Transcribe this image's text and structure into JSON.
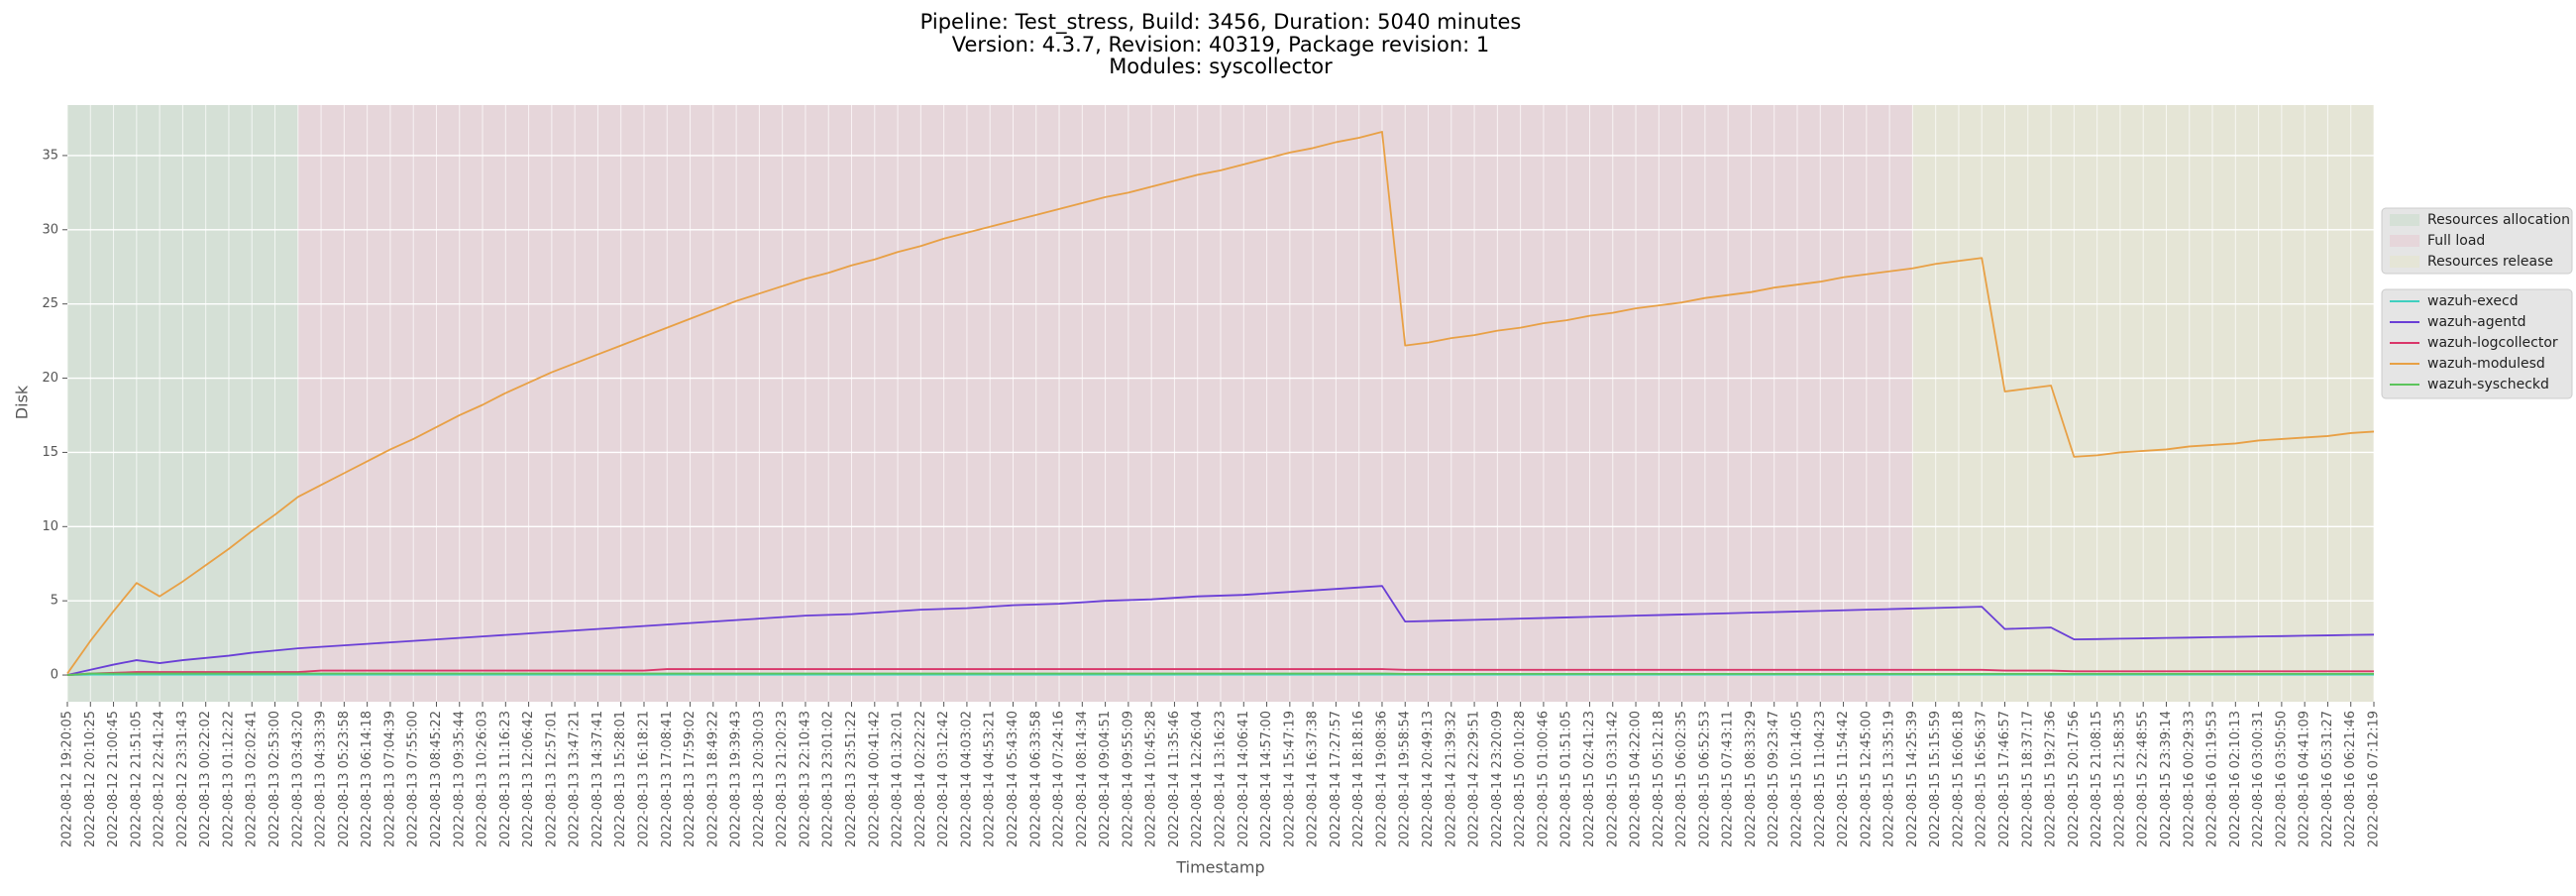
{
  "chart_data": {
    "type": "line",
    "title": [
      "Pipeline: Test_stress, Build: 3456, Duration: 5040 minutes",
      "Version: 4.3.7, Revision: 40319, Package revision: 1",
      "Modules: syscollector"
    ],
    "x_label": "Timestamp",
    "y_label": "Disk",
    "ylim": [
      -1.8,
      38.4
    ],
    "yticks": [
      0,
      5,
      10,
      15,
      20,
      25,
      30,
      35
    ],
    "grid": true,
    "legend": "right",
    "categories": [
      "2022-08-12 19:20:05",
      "2022-08-12 20:10:25",
      "2022-08-12 21:00:45",
      "2022-08-12 21:51:05",
      "2022-08-12 22:41:24",
      "2022-08-12 23:31:43",
      "2022-08-13 00:22:02",
      "2022-08-13 01:12:22",
      "2022-08-13 02:02:41",
      "2022-08-13 02:53:00",
      "2022-08-13 03:43:20",
      "2022-08-13 04:33:39",
      "2022-08-13 05:23:58",
      "2022-08-13 06:14:18",
      "2022-08-13 07:04:39",
      "2022-08-13 07:55:00",
      "2022-08-13 08:45:22",
      "2022-08-13 09:35:44",
      "2022-08-13 10:26:03",
      "2022-08-13 11:16:23",
      "2022-08-13 12:06:42",
      "2022-08-13 12:57:01",
      "2022-08-13 13:47:21",
      "2022-08-13 14:37:41",
      "2022-08-13 15:28:01",
      "2022-08-13 16:18:21",
      "2022-08-13 17:08:41",
      "2022-08-13 17:59:02",
      "2022-08-13 18:49:22",
      "2022-08-13 19:39:43",
      "2022-08-13 20:30:03",
      "2022-08-13 21:20:23",
      "2022-08-13 22:10:43",
      "2022-08-13 23:01:02",
      "2022-08-13 23:51:22",
      "2022-08-14 00:41:42",
      "2022-08-14 01:32:01",
      "2022-08-14 02:22:22",
      "2022-08-14 03:12:42",
      "2022-08-14 04:03:02",
      "2022-08-14 04:53:21",
      "2022-08-14 05:43:40",
      "2022-08-14 06:33:58",
      "2022-08-14 07:24:16",
      "2022-08-14 08:14:34",
      "2022-08-14 09:04:51",
      "2022-08-14 09:55:09",
      "2022-08-14 10:45:28",
      "2022-08-14 11:35:46",
      "2022-08-14 12:26:04",
      "2022-08-14 13:16:23",
      "2022-08-14 14:06:41",
      "2022-08-14 14:57:00",
      "2022-08-14 15:47:19",
      "2022-08-14 16:37:38",
      "2022-08-14 17:27:57",
      "2022-08-14 18:18:16",
      "2022-08-14 19:08:36",
      "2022-08-14 19:58:54",
      "2022-08-14 20:49:13",
      "2022-08-14 21:39:32",
      "2022-08-14 22:29:51",
      "2022-08-14 23:20:09",
      "2022-08-15 00:10:28",
      "2022-08-15 01:00:46",
      "2022-08-15 01:51:05",
      "2022-08-15 02:41:23",
      "2022-08-15 03:31:42",
      "2022-08-15 04:22:00",
      "2022-08-15 05:12:18",
      "2022-08-15 06:02:35",
      "2022-08-15 06:52:53",
      "2022-08-15 07:43:11",
      "2022-08-15 08:33:29",
      "2022-08-15 09:23:47",
      "2022-08-15 10:14:05",
      "2022-08-15 11:04:23",
      "2022-08-15 11:54:42",
      "2022-08-15 12:45:00",
      "2022-08-15 13:35:19",
      "2022-08-15 14:25:39",
      "2022-08-15 15:15:59",
      "2022-08-15 16:06:18",
      "2022-08-15 16:56:37",
      "2022-08-15 17:46:57",
      "2022-08-15 18:37:17",
      "2022-08-15 19:27:36",
      "2022-08-15 20:17:56",
      "2022-08-15 21:08:15",
      "2022-08-15 21:58:35",
      "2022-08-15 22:48:55",
      "2022-08-15 23:39:14",
      "2022-08-16 00:29:33",
      "2022-08-16 01:19:53",
      "2022-08-16 02:10:13",
      "2022-08-16 03:00:31",
      "2022-08-16 03:50:50",
      "2022-08-16 04:41:09",
      "2022-08-16 05:31:27",
      "2022-08-16 06:21:46",
      "2022-08-16 07:12:19"
    ],
    "spans": [
      {
        "name": "Resources allocation",
        "color": "#d5e0d6",
        "start": "2022-08-12 19:20:05",
        "end": "2022-08-13 03:43:20"
      },
      {
        "name": "Full load",
        "color": "#e6d6da",
        "start": "2022-08-13 03:43:20",
        "end": "2022-08-15 14:25:39"
      },
      {
        "name": "Resources release",
        "color": "#e5e5d6",
        "start": "2022-08-15 14:25:39",
        "end": "2022-08-16 07:12:19"
      }
    ],
    "series": [
      {
        "name": "wazuh-execd",
        "color": "#3fcfbf",
        "values": [
          0.0,
          0.02,
          0.02,
          0.02,
          0.02,
          0.02,
          0.02,
          0.02,
          0.02,
          0.02,
          0.02,
          0.02,
          0.02,
          0.02,
          0.02,
          0.02,
          0.02,
          0.02,
          0.02,
          0.02,
          0.02,
          0.02,
          0.02,
          0.02,
          0.02,
          0.02,
          0.02,
          0.02,
          0.02,
          0.02,
          0.02,
          0.02,
          0.02,
          0.02,
          0.02,
          0.02,
          0.02,
          0.02,
          0.02,
          0.02,
          0.02,
          0.02,
          0.02,
          0.02,
          0.02,
          0.02,
          0.02,
          0.02,
          0.02,
          0.02,
          0.02,
          0.02,
          0.02,
          0.02,
          0.02,
          0.02,
          0.02,
          0.02,
          0.02,
          0.02,
          0.02,
          0.02,
          0.02,
          0.02,
          0.02,
          0.02,
          0.02,
          0.02,
          0.02,
          0.02,
          0.02,
          0.02,
          0.02,
          0.02,
          0.02,
          0.02,
          0.02,
          0.02,
          0.02,
          0.02,
          0.02,
          0.02,
          0.02,
          0.02,
          0.02,
          0.02,
          0.02,
          0.02,
          0.02,
          0.02,
          0.02,
          0.02,
          0.02,
          0.02,
          0.02,
          0.02,
          0.02,
          0.02,
          0.02,
          0.02,
          0.02
        ]
      },
      {
        "name": "wazuh-agentd",
        "color": "#6a3fd6",
        "values": [
          0.0,
          0.35,
          0.7,
          1.0,
          0.8,
          1.0,
          1.15,
          1.3,
          1.5,
          1.65,
          1.8,
          1.9,
          2.0,
          2.1,
          2.2,
          2.3,
          2.4,
          2.5,
          2.6,
          2.7,
          2.8,
          2.9,
          3.0,
          3.1,
          3.2,
          3.3,
          3.4,
          3.5,
          3.6,
          3.7,
          3.8,
          3.9,
          4.0,
          4.05,
          4.1,
          4.2,
          4.3,
          4.4,
          4.45,
          4.5,
          4.6,
          4.7,
          4.75,
          4.8,
          4.9,
          5.0,
          5.05,
          5.1,
          5.2,
          5.3,
          5.35,
          5.4,
          5.5,
          5.6,
          5.7,
          5.8,
          5.9,
          6.0,
          3.6,
          3.64,
          3.68,
          3.72,
          3.76,
          3.8,
          3.84,
          3.88,
          3.92,
          3.96,
          4.0,
          4.04,
          4.08,
          4.12,
          4.16,
          4.2,
          4.24,
          4.28,
          4.32,
          4.36,
          4.4,
          4.44,
          4.48,
          4.52,
          4.56,
          4.6,
          3.1,
          3.15,
          3.2,
          2.4,
          2.42,
          2.45,
          2.47,
          2.5,
          2.52,
          2.55,
          2.57,
          2.6,
          2.62,
          2.65,
          2.67,
          2.7,
          2.72
        ]
      },
      {
        "name": "wazuh-logcollector",
        "color": "#d9366a",
        "values": [
          0.0,
          0.1,
          0.15,
          0.2,
          0.2,
          0.2,
          0.2,
          0.2,
          0.2,
          0.2,
          0.2,
          0.3,
          0.3,
          0.3,
          0.3,
          0.3,
          0.3,
          0.3,
          0.3,
          0.3,
          0.3,
          0.3,
          0.3,
          0.3,
          0.3,
          0.3,
          0.4,
          0.4,
          0.4,
          0.4,
          0.4,
          0.4,
          0.4,
          0.4,
          0.4,
          0.4,
          0.4,
          0.4,
          0.4,
          0.4,
          0.4,
          0.4,
          0.4,
          0.4,
          0.4,
          0.4,
          0.4,
          0.4,
          0.4,
          0.4,
          0.4,
          0.4,
          0.4,
          0.4,
          0.4,
          0.4,
          0.4,
          0.4,
          0.35,
          0.35,
          0.35,
          0.35,
          0.35,
          0.35,
          0.35,
          0.35,
          0.35,
          0.35,
          0.35,
          0.35,
          0.35,
          0.35,
          0.35,
          0.35,
          0.35,
          0.35,
          0.35,
          0.35,
          0.35,
          0.35,
          0.35,
          0.35,
          0.35,
          0.35,
          0.3,
          0.3,
          0.3,
          0.25,
          0.25,
          0.25,
          0.25,
          0.25,
          0.25,
          0.25,
          0.25,
          0.25,
          0.25,
          0.25,
          0.25,
          0.25,
          0.25
        ]
      },
      {
        "name": "wazuh-modulesd",
        "color": "#e8a045",
        "values": [
          0.1,
          2.3,
          4.3,
          6.2,
          5.3,
          6.3,
          7.4,
          8.5,
          9.7,
          10.8,
          12.0,
          12.8,
          13.6,
          14.4,
          15.2,
          15.9,
          16.7,
          17.5,
          18.2,
          19.0,
          19.7,
          20.4,
          21.0,
          21.6,
          22.2,
          22.8,
          23.4,
          24.0,
          24.6,
          25.2,
          25.7,
          26.2,
          26.7,
          27.1,
          27.6,
          28.0,
          28.5,
          28.9,
          29.4,
          29.8,
          30.2,
          30.6,
          31.0,
          31.4,
          31.8,
          32.2,
          32.5,
          32.9,
          33.3,
          33.7,
          34.0,
          34.4,
          34.8,
          35.2,
          35.5,
          35.9,
          36.2,
          36.6,
          22.2,
          22.4,
          22.7,
          22.9,
          23.2,
          23.4,
          23.7,
          23.9,
          24.2,
          24.4,
          24.7,
          24.9,
          25.1,
          25.4,
          25.6,
          25.8,
          26.1,
          26.3,
          26.5,
          26.8,
          27.0,
          27.2,
          27.4,
          27.7,
          27.9,
          28.1,
          19.1,
          19.3,
          19.5,
          14.7,
          14.8,
          15.0,
          15.1,
          15.2,
          15.4,
          15.5,
          15.6,
          15.8,
          15.9,
          16.0,
          16.1,
          16.3,
          16.4
        ]
      },
      {
        "name": "wazuh-syscheckd",
        "color": "#5cc45c",
        "values": [
          0.0,
          0.1,
          0.1,
          0.1,
          0.1,
          0.1,
          0.1,
          0.1,
          0.1,
          0.1,
          0.1,
          0.1,
          0.1,
          0.1,
          0.1,
          0.1,
          0.1,
          0.1,
          0.1,
          0.1,
          0.1,
          0.1,
          0.1,
          0.1,
          0.1,
          0.1,
          0.1,
          0.1,
          0.1,
          0.1,
          0.1,
          0.1,
          0.1,
          0.1,
          0.1,
          0.1,
          0.1,
          0.1,
          0.1,
          0.1,
          0.1,
          0.1,
          0.1,
          0.1,
          0.1,
          0.1,
          0.1,
          0.1,
          0.1,
          0.1,
          0.1,
          0.1,
          0.1,
          0.1,
          0.1,
          0.1,
          0.1,
          0.1,
          0.08,
          0.08,
          0.08,
          0.08,
          0.08,
          0.08,
          0.08,
          0.08,
          0.08,
          0.08,
          0.08,
          0.08,
          0.08,
          0.08,
          0.08,
          0.08,
          0.08,
          0.08,
          0.08,
          0.08,
          0.08,
          0.08,
          0.08,
          0.08,
          0.08,
          0.08,
          0.08,
          0.08,
          0.08,
          0.08,
          0.08,
          0.08,
          0.08,
          0.08,
          0.08,
          0.08,
          0.08,
          0.08,
          0.08,
          0.08,
          0.08,
          0.08,
          0.08
        ]
      }
    ]
  }
}
